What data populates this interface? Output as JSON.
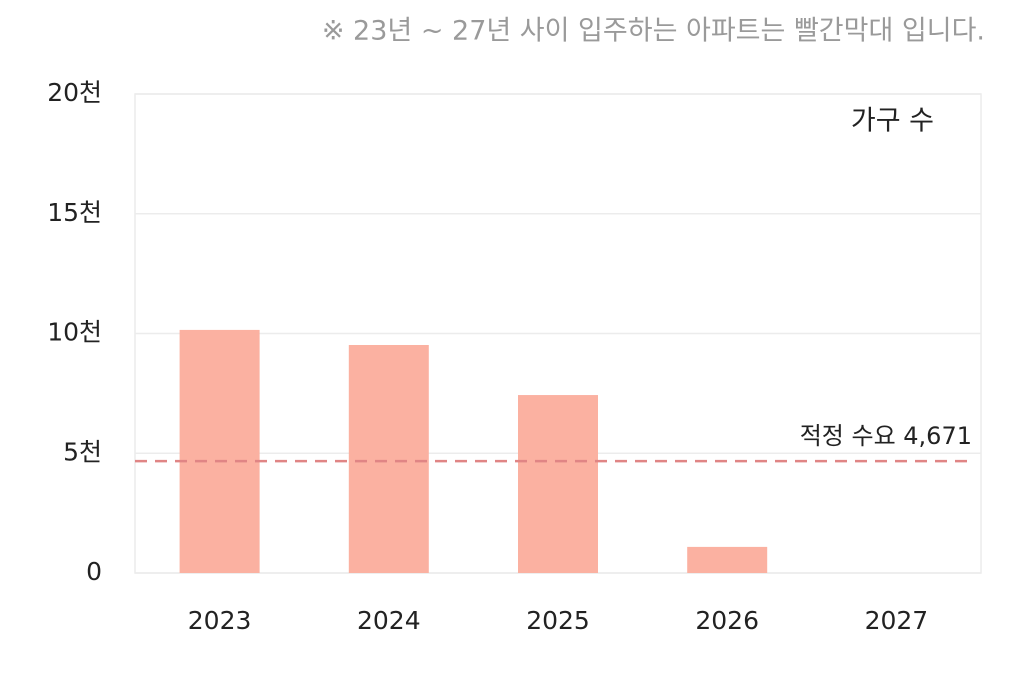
{
  "chart_data": {
    "type": "bar",
    "title": "※ 23년 ~ 27년 사이 입주하는 아파트는 빨간막대 입니다.",
    "ylabel": "가구 수",
    "categories": [
      "2023",
      "2024",
      "2025",
      "2026",
      "2027"
    ],
    "values": [
      10150,
      9520,
      7430,
      1090,
      0
    ],
    "color": "#fbb1a1",
    "ylim": [
      0,
      20000
    ],
    "yticks": [
      0,
      {
        "value": 5000,
        "label": "5천"
      },
      {
        "value": 10000,
        "label": "10천"
      },
      {
        "value": 15000,
        "label": "15천"
      },
      {
        "value": 20000,
        "label": "20천"
      }
    ],
    "grid": true,
    "reference_line": {
      "value": 4671,
      "label": "적정 수요 4,671",
      "color": "#e08585"
    }
  }
}
